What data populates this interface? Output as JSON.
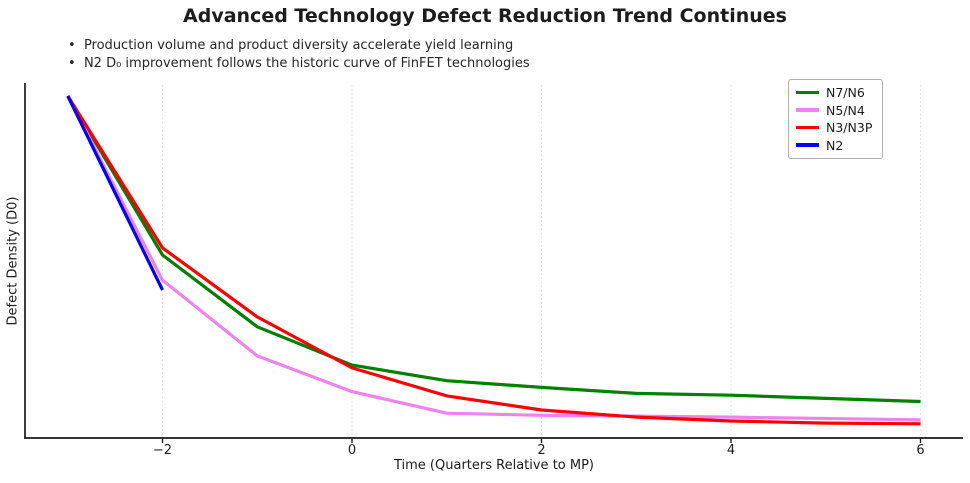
{
  "title": "Advanced Technology Defect Reduction Trend Continues",
  "bullets": [
    "Production volume and product diversity accelerate yield learning",
    "N2 D₀ improvement follows the historic curve of FinFET technologies"
  ],
  "chart_data": {
    "type": "line",
    "title": "Advanced Technology Defect Reduction Trend Continues",
    "xlabel": "Time (Quarters Relative to MP)",
    "ylabel": "Defect Density (D0)",
    "xlim": [
      -3.45,
      6.45
    ],
    "ylim": [
      0,
      1.0
    ],
    "grid": "vertical dashed gridlines at x ticks only",
    "legend_position": "upper right",
    "y_axis_ticks": [],
    "xticks": {
      "values": [
        -2,
        0,
        2,
        4,
        6
      ],
      "labels": [
        "−2",
        "0",
        "2",
        "4",
        "6"
      ]
    },
    "series": [
      {
        "name": "N7/N6",
        "color": "#008000",
        "x": [
          -3,
          -2,
          -1,
          0,
          1,
          2,
          3,
          4,
          5,
          6
        ],
        "y": [
          0.966,
          0.517,
          0.314,
          0.206,
          0.162,
          0.143,
          0.126,
          0.121,
          0.112,
          0.103
        ]
      },
      {
        "name": "N5/N4",
        "color": "#EE82EE",
        "x": [
          -3,
          -2,
          -1,
          0,
          1,
          2,
          3,
          4,
          5,
          6
        ],
        "y": [
          0.966,
          0.446,
          0.232,
          0.131,
          0.07,
          0.064,
          0.062,
          0.059,
          0.055,
          0.051
        ]
      },
      {
        "name": "N3/N3P",
        "color": "#FF0000",
        "x": [
          -3,
          -2,
          -1,
          0,
          1,
          2,
          3,
          4,
          5,
          6
        ],
        "y": [
          0.966,
          0.537,
          0.342,
          0.198,
          0.119,
          0.079,
          0.059,
          0.048,
          0.042,
          0.04
        ]
      },
      {
        "name": "N2",
        "color": "#0000FF",
        "x": [
          -3,
          -2
        ],
        "y": [
          0.966,
          0.418
        ]
      }
    ],
    "style": {
      "line_width": 3.2,
      "axis_color": "#1a1a1a",
      "grid_color": "#dcdcdc",
      "legend_border_color": "#b0b0b0",
      "background": "#ffffff"
    }
  }
}
